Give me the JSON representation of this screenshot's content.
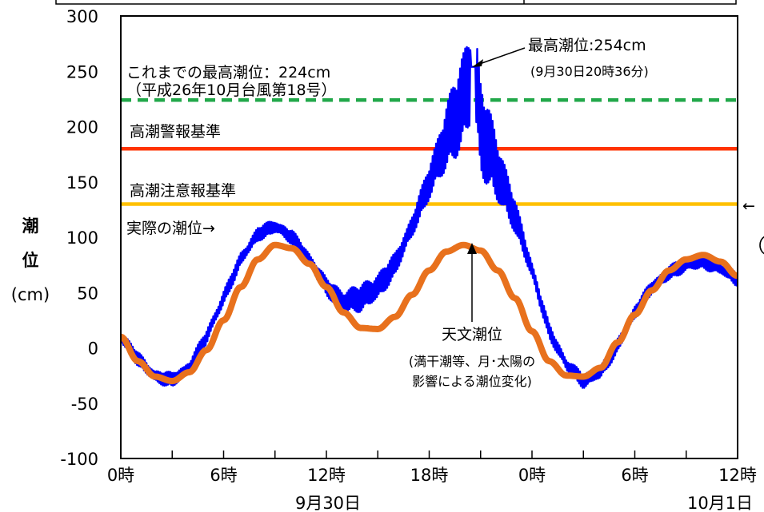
{
  "chart_data": {
    "type": "line",
    "ylim": [
      -100,
      300
    ],
    "y_ticks": [
      "300",
      "250",
      "200",
      "150",
      "100",
      "50",
      "0",
      "-50",
      "-100"
    ],
    "x_ticks": [
      "0時",
      "6時",
      "12時",
      "18時",
      "0時",
      "6時",
      "12時"
    ],
    "x_dates": [
      "9月30日",
      "10月1日"
    ],
    "ylabel": {
      "line1": "潮",
      "line2": "位",
      "unit": "(cm)"
    },
    "reference_lines": [
      {
        "label": "これまでの最高潮位：224cm",
        "sublabel": "（平成26年10月台風第18号）",
        "value": 224,
        "color": "#22a84a",
        "dashed": true
      },
      {
        "label": "高潮警報基準",
        "value": 180,
        "color": "#ff3300",
        "dashed": false
      },
      {
        "label": "高潮注意報基準",
        "value": 130,
        "color": "#ffc000",
        "dashed": false
      }
    ],
    "series": [
      {
        "color": "#0000ff",
        "x": [
          0,
          1,
          2,
          3,
          4,
          5,
          6,
          7,
          8,
          9,
          10,
          11,
          12,
          13,
          14,
          15,
          16,
          17,
          18,
          19,
          20,
          20.6,
          21,
          22,
          23,
          24,
          25,
          26,
          27,
          28,
          29,
          30,
          31,
          32,
          33,
          34,
          35,
          36
        ],
        "y": [
          10,
          -10,
          -26,
          -29,
          -18,
          10,
          45,
          80,
          103,
          110,
          100,
          80,
          55,
          42,
          45,
          55,
          75,
          110,
          150,
          190,
          225,
          254,
          200,
          160,
          120,
          70,
          15,
          -15,
          -30,
          -22,
          2,
          32,
          55,
          68,
          75,
          78,
          72,
          62
        ]
      },
      {
        "color": "#e8711d",
        "x": [
          0,
          1,
          2,
          3,
          4,
          5,
          6,
          7,
          8,
          9,
          10,
          11,
          12,
          13,
          14,
          15,
          16,
          17,
          18,
          19,
          20,
          21,
          22,
          23,
          24,
          25,
          26,
          27,
          28,
          29,
          30,
          31,
          32,
          33,
          34,
          35,
          36
        ],
        "y": [
          10,
          -12,
          -26,
          -30,
          -22,
          -2,
          25,
          55,
          80,
          93,
          90,
          76,
          55,
          32,
          18,
          17,
          28,
          48,
          70,
          87,
          93,
          88,
          70,
          45,
          15,
          -12,
          -25,
          -26,
          -18,
          5,
          30,
          52,
          70,
          80,
          84,
          78,
          65
        ]
      }
    ],
    "annotations": {
      "max_label": "最高潮位:254cm",
      "max_time": "(9月30日20時36分)",
      "actual_label": "実際の潮位→",
      "astro_label": "天文潮位",
      "astro_desc1": "(満干潮等、月･太陽の",
      "astro_desc2": "影響による潮位変化)",
      "arrow_right": "←"
    }
  }
}
